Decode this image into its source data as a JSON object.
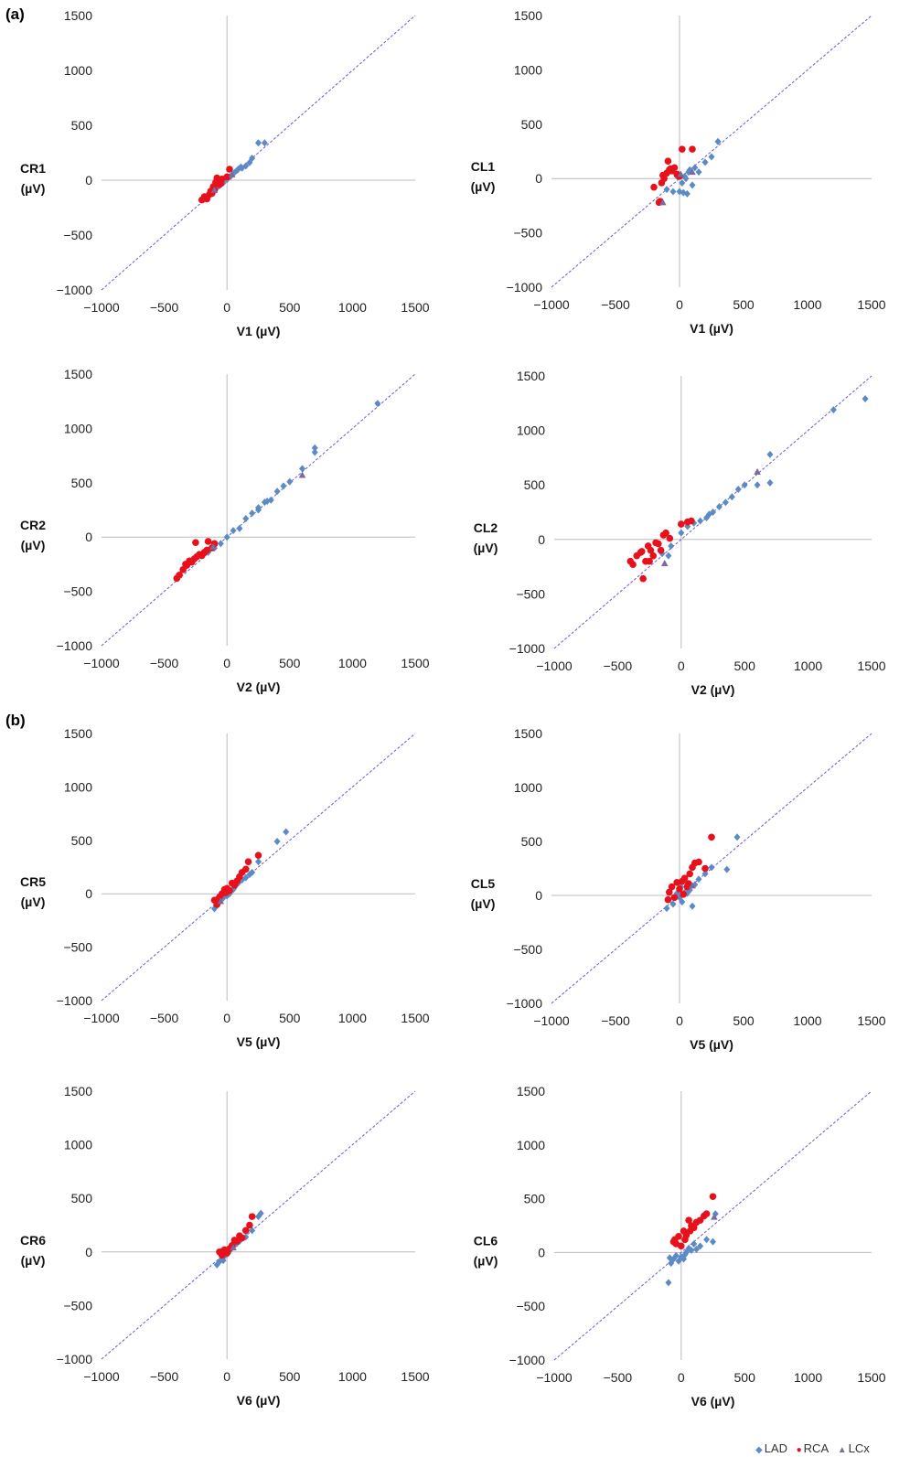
{
  "panel_labels": [
    "(a)",
    "(b)"
  ],
  "legend": [
    {
      "label": "LAD",
      "symbol": "diamond",
      "color": "#5B8AC7"
    },
    {
      "label": "RCA",
      "symbol": "circle",
      "color": "#E8101A"
    },
    {
      "label": "LCx",
      "symbol": "triangle",
      "color": "#7A6A9E"
    }
  ],
  "colors": {
    "LAD": "#5B8AC7",
    "RCA": "#E8101A",
    "LCx": "#7A6A9E",
    "identity_line": "#6A5ACD",
    "axis": "#BBBBBB"
  },
  "chart_data": [
    {
      "type": "scatter",
      "xlabel": "V1 (µV)",
      "ylabel": [
        "CR1",
        "(µV)"
      ],
      "xlim": [
        -1000,
        1500
      ],
      "ylim": [
        -1000,
        1500
      ],
      "xticks": [
        "−1000",
        "−500",
        "0",
        "500",
        "1000",
        "1500"
      ],
      "yticks": [
        "−1000",
        "−500",
        "0",
        "500",
        "1000",
        "1500"
      ],
      "reference_line": "y = x",
      "series": [
        {
          "name": "LAD",
          "x": [
            -150,
            -120,
            -90,
            -60,
            -30,
            0,
            30,
            60,
            90,
            120,
            150,
            180,
            200,
            250,
            300,
            -80,
            -40,
            20,
            80,
            110
          ],
          "y": [
            -140,
            -110,
            -80,
            -50,
            -25,
            5,
            35,
            70,
            100,
            110,
            130,
            160,
            200,
            340,
            340,
            -70,
            -30,
            30,
            90,
            120
          ]
        },
        {
          "name": "RCA",
          "x": [
            -200,
            -180,
            -160,
            -140,
            -120,
            -100,
            -90,
            -80,
            -60,
            -50,
            -40,
            0,
            20,
            -110,
            -130
          ],
          "y": [
            -180,
            -150,
            -170,
            -130,
            -120,
            -90,
            -20,
            20,
            -40,
            -30,
            10,
            30,
            100,
            -60,
            -100
          ]
        },
        {
          "name": "LCx",
          "x": [
            -100,
            40
          ],
          "y": [
            -90,
            50
          ]
        }
      ]
    },
    {
      "type": "scatter",
      "xlabel": "V1 (µV)",
      "ylabel": [
        "CL1",
        "(µV)"
      ],
      "xlim": [
        -1000,
        1500
      ],
      "ylim": [
        -1000,
        1500
      ],
      "xticks": [
        "−1000",
        "−500",
        "0",
        "500",
        "1000",
        "1500"
      ],
      "yticks": [
        "−1000",
        "−500",
        "0",
        "500",
        "1000",
        "1500"
      ],
      "reference_line": "y = x",
      "series": [
        {
          "name": "LAD",
          "x": [
            -100,
            -50,
            0,
            30,
            60,
            100,
            150,
            200,
            250,
            300,
            50,
            80,
            120,
            20,
            -20,
            40,
            70
          ],
          "y": [
            -100,
            -120,
            -120,
            -130,
            -140,
            -60,
            60,
            150,
            200,
            340,
            0,
            80,
            100,
            -40,
            20,
            20,
            60
          ]
        },
        {
          "name": "RCA",
          "x": [
            -200,
            -160,
            -140,
            -120,
            -100,
            -80,
            -60,
            -40,
            -20,
            0,
            20,
            -150,
            -90,
            100,
            -130,
            -70
          ],
          "y": [
            -80,
            -220,
            -40,
            0,
            50,
            80,
            70,
            100,
            40,
            20,
            270,
            -210,
            160,
            270,
            30,
            90
          ]
        },
        {
          "name": "LCx",
          "x": [
            -130,
            10,
            100
          ],
          "y": [
            -220,
            40,
            60
          ]
        }
      ]
    },
    {
      "type": "scatter",
      "xlabel": "V2 (µV)",
      "ylabel": [
        "CR2",
        "(µV)"
      ],
      "xlim": [
        -1000,
        1500
      ],
      "ylim": [
        -1000,
        1500
      ],
      "xticks": [
        "−1000",
        "−500",
        "0",
        "500",
        "1000",
        "1500"
      ],
      "yticks": [
        "−1000",
        "−500",
        "0",
        "500",
        "1000",
        "1500"
      ],
      "reference_line": "y = x",
      "series": [
        {
          "name": "LAD",
          "x": [
            -100,
            -50,
            0,
            50,
            100,
            150,
            200,
            250,
            300,
            350,
            400,
            450,
            500,
            600,
            700,
            700,
            1200,
            -150,
            250,
            320
          ],
          "y": [
            -100,
            -60,
            0,
            60,
            80,
            170,
            220,
            270,
            320,
            340,
            420,
            470,
            510,
            630,
            780,
            820,
            1230,
            -140,
            250,
            330
          ]
        },
        {
          "name": "RCA",
          "x": [
            -400,
            -380,
            -350,
            -320,
            -300,
            -280,
            -260,
            -240,
            -220,
            -200,
            -180,
            -160,
            -150,
            -120,
            -100,
            -250,
            -330
          ],
          "y": [
            -380,
            -350,
            -300,
            -260,
            -220,
            -230,
            -200,
            -180,
            -160,
            -170,
            -140,
            -120,
            -40,
            -100,
            -60,
            -50,
            -250
          ]
        },
        {
          "name": "LCx",
          "x": [
            600,
            -110
          ],
          "y": [
            570,
            -90
          ]
        }
      ]
    },
    {
      "type": "scatter",
      "xlabel": "V2 (µV)",
      "ylabel": [
        "CL2",
        "(µV)"
      ],
      "xlim": [
        -1000,
        1500
      ],
      "ylim": [
        -1000,
        1500
      ],
      "xticks": [
        "−1000",
        "−500",
        "0",
        "500",
        "1000",
        "1500"
      ],
      "yticks": [
        "−1000",
        "−500",
        "0",
        "500",
        "1000",
        "1500"
      ],
      "reference_line": "y = x",
      "series": [
        {
          "name": "LAD",
          "x": [
            -100,
            0,
            50,
            100,
            150,
            200,
            250,
            300,
            350,
            400,
            450,
            500,
            600,
            700,
            700,
            1200,
            1450,
            -150,
            -80,
            220
          ],
          "y": [
            -150,
            60,
            120,
            150,
            170,
            200,
            250,
            300,
            340,
            390,
            460,
            500,
            500,
            520,
            780,
            1190,
            1290,
            -130,
            -60,
            230
          ]
        },
        {
          "name": "RCA",
          "x": [
            -400,
            -380,
            -350,
            -320,
            -300,
            -280,
            -260,
            -240,
            -220,
            -200,
            -180,
            -160,
            -140,
            -120,
            0,
            -310,
            -250,
            -90,
            50,
            80
          ],
          "y": [
            -200,
            -230,
            -150,
            -120,
            -360,
            -200,
            -60,
            -100,
            -150,
            -30,
            -40,
            -100,
            40,
            60,
            140,
            -110,
            -200,
            10,
            160,
            170
          ]
        },
        {
          "name": "LCx",
          "x": [
            600,
            -130
          ],
          "y": [
            620,
            -220
          ]
        }
      ]
    },
    {
      "type": "scatter",
      "xlabel": "V5 (µV)",
      "ylabel": [
        "CR5",
        "(µV)"
      ],
      "xlim": [
        -1000,
        1500
      ],
      "ylim": [
        -1000,
        1500
      ],
      "xticks": [
        "−1000",
        "−500",
        "0",
        "500",
        "1000",
        "1500"
      ],
      "yticks": [
        "−1000",
        "−500",
        "0",
        "500",
        "1000",
        "1500"
      ],
      "reference_line": "y = x",
      "series": [
        {
          "name": "LAD",
          "x": [
            -100,
            -60,
            -30,
            0,
            30,
            60,
            90,
            120,
            150,
            180,
            200,
            250,
            400,
            470,
            -80,
            20,
            50
          ],
          "y": [
            -140,
            -80,
            -40,
            -20,
            20,
            60,
            100,
            130,
            150,
            180,
            200,
            300,
            490,
            580,
            -110,
            0,
            40
          ]
        },
        {
          "name": "RCA",
          "x": [
            -100,
            -80,
            -60,
            -40,
            -20,
            0,
            20,
            40,
            60,
            80,
            100,
            120,
            150,
            170,
            250,
            -70,
            -10
          ],
          "y": [
            -60,
            -100,
            -30,
            0,
            40,
            50,
            30,
            100,
            80,
            120,
            160,
            200,
            230,
            300,
            360,
            -50,
            10
          ]
        },
        {
          "name": "LCx",
          "x": [
            -50
          ],
          "y": [
            -70
          ]
        }
      ]
    },
    {
      "type": "scatter",
      "xlabel": "V5 (µV)",
      "ylabel": [
        "CL5",
        "(µV)"
      ],
      "xlim": [
        -1000,
        1500
      ],
      "ylim": [
        -1000,
        1500
      ],
      "xticks": [
        "−1000",
        "−500",
        "0",
        "500",
        "1000",
        "1500"
      ],
      "yticks": [
        "−1000",
        "−500",
        "0",
        "500",
        "1000",
        "1500"
      ],
      "reference_line": "y = x",
      "series": [
        {
          "name": "LAD",
          "x": [
            -100,
            -50,
            0,
            50,
            100,
            120,
            150,
            200,
            250,
            370,
            450,
            20,
            80,
            -20,
            10,
            60
          ],
          "y": [
            -120,
            -80,
            -20,
            40,
            -100,
            100,
            150,
            200,
            260,
            240,
            540,
            -60,
            50,
            20,
            80,
            20
          ]
        },
        {
          "name": "RCA",
          "x": [
            -80,
            -60,
            -40,
            -20,
            0,
            20,
            40,
            60,
            80,
            100,
            120,
            150,
            200,
            250,
            -90,
            30,
            70
          ],
          "y": [
            30,
            80,
            -20,
            120,
            60,
            130,
            160,
            80,
            200,
            260,
            300,
            310,
            250,
            540,
            -40,
            10,
            110
          ]
        },
        {
          "name": "LCx",
          "x": [
            100
          ],
          "y": [
            90
          ]
        }
      ]
    },
    {
      "type": "scatter",
      "xlabel": "V6 (µV)",
      "ylabel": [
        "CR6",
        "(µV)"
      ],
      "xlim": [
        -1000,
        1500
      ],
      "ylim": [
        -1000,
        1500
      ],
      "xticks": [
        "−1000",
        "−500",
        "0",
        "500",
        "1000",
        "1500"
      ],
      "yticks": [
        "−1000",
        "−500",
        "0",
        "500",
        "1000",
        "1500"
      ],
      "reference_line": "y = x",
      "series": [
        {
          "name": "LAD",
          "x": [
            -80,
            -60,
            -40,
            -20,
            0,
            20,
            40,
            60,
            80,
            100,
            150,
            200,
            250,
            270,
            -30,
            10
          ],
          "y": [
            -120,
            -90,
            -60,
            -40,
            -20,
            10,
            40,
            60,
            80,
            100,
            140,
            200,
            330,
            360,
            -80,
            -10
          ]
        },
        {
          "name": "RCA",
          "x": [
            -60,
            -40,
            -20,
            0,
            20,
            40,
            60,
            80,
            100,
            120,
            150,
            180,
            200,
            -30
          ],
          "y": [
            0,
            -30,
            20,
            -10,
            30,
            60,
            110,
            100,
            150,
            130,
            200,
            250,
            330,
            10
          ]
        },
        {
          "name": "LCx",
          "x": [
            50
          ],
          "y": [
            40
          ]
        }
      ]
    },
    {
      "type": "scatter",
      "xlabel": "V6 (µV)",
      "ylabel": [
        "CL6",
        "(µV)"
      ],
      "xlim": [
        -1000,
        1500
      ],
      "ylim": [
        -1000,
        1500
      ],
      "xticks": [
        "−1000",
        "−500",
        "0",
        "500",
        "1000",
        "1500"
      ],
      "yticks": [
        "−1000",
        "−500",
        "0",
        "500",
        "1000",
        "1500"
      ],
      "reference_line": "y = x",
      "series": [
        {
          "name": "LAD",
          "x": [
            -100,
            -80,
            -60,
            -40,
            -20,
            0,
            20,
            40,
            60,
            80,
            100,
            150,
            200,
            250,
            270,
            -90,
            30,
            120
          ],
          "y": [
            -280,
            -100,
            -60,
            -30,
            -80,
            -40,
            -60,
            0,
            40,
            20,
            80,
            60,
            120,
            100,
            360,
            -50,
            -20,
            30
          ]
        },
        {
          "name": "RCA",
          "x": [
            -60,
            -40,
            -20,
            0,
            20,
            40,
            60,
            80,
            100,
            120,
            150,
            180,
            200,
            250,
            -50,
            30,
            70
          ],
          "y": [
            100,
            80,
            150,
            60,
            200,
            160,
            300,
            250,
            230,
            280,
            300,
            340,
            360,
            520,
            120,
            120,
            200
          ]
        },
        {
          "name": "LCx",
          "x": [
            260
          ],
          "y": [
            330
          ]
        }
      ]
    }
  ]
}
